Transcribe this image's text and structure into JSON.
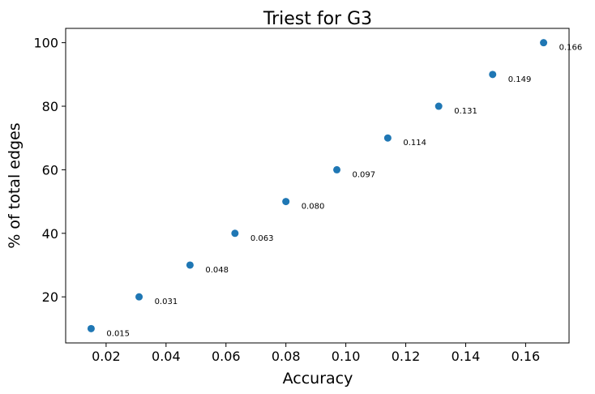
{
  "chart_data": {
    "type": "scatter",
    "title": "Triest for G3",
    "xlabel": "Accuracy",
    "ylabel": "% of total edges",
    "xlim": [
      0.0065,
      0.1745
    ],
    "ylim": [
      5.5,
      104.5
    ],
    "xticks": [
      0.02,
      0.04,
      0.06,
      0.08,
      0.1,
      0.12,
      0.14,
      0.16
    ],
    "xtick_labels": [
      "0.02",
      "0.04",
      "0.06",
      "0.08",
      "0.10",
      "0.12",
      "0.14",
      "0.16"
    ],
    "yticks": [
      20,
      40,
      60,
      80,
      100
    ],
    "ytick_labels": [
      "20",
      "40",
      "60",
      "80",
      "100"
    ],
    "grid": false,
    "color": "#1f77b4",
    "points": [
      {
        "x": 0.015,
        "y": 10,
        "label": "0.015"
      },
      {
        "x": 0.031,
        "y": 20,
        "label": "0.031"
      },
      {
        "x": 0.048,
        "y": 30,
        "label": "0.048"
      },
      {
        "x": 0.063,
        "y": 40,
        "label": "0.063"
      },
      {
        "x": 0.08,
        "y": 50,
        "label": "0.080"
      },
      {
        "x": 0.097,
        "y": 60,
        "label": "0.097"
      },
      {
        "x": 0.114,
        "y": 70,
        "label": "0.114"
      },
      {
        "x": 0.131,
        "y": 80,
        "label": "0.131"
      },
      {
        "x": 0.149,
        "y": 90,
        "label": "0.149"
      },
      {
        "x": 0.166,
        "y": 100,
        "label": "0.166"
      }
    ]
  }
}
